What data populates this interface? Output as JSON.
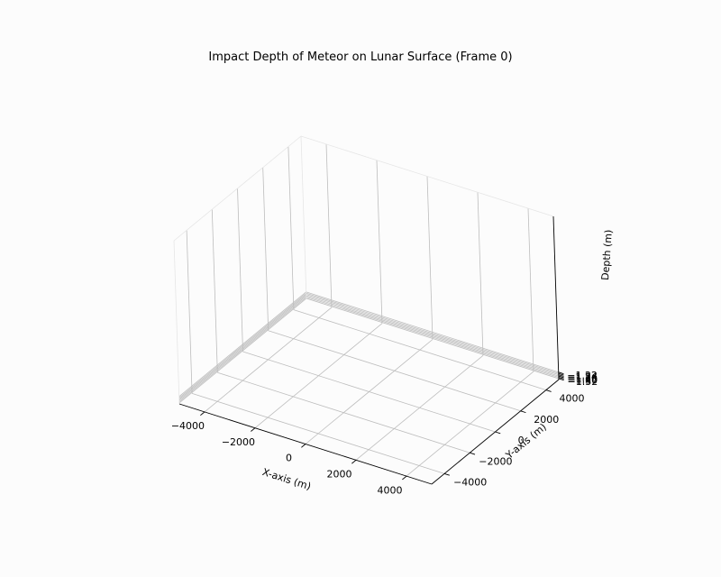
{
  "chart_data": {
    "type": "surface3d",
    "title": "Impact Depth of Meteor on Lunar Surface (Frame 0)",
    "xlabel": "X-axis (m)",
    "ylabel": "Y-axis (m)",
    "zlabel": "Depth (m)",
    "xlim": [
      -5000,
      5000
    ],
    "ylim": [
      -5000,
      5000
    ],
    "zlim": [
      -1.335,
      1.215
    ],
    "x_ticks": [
      -4000,
      -2000,
      0,
      2000,
      4000
    ],
    "y_ticks": [
      -4000,
      -2000,
      0,
      2000,
      4000
    ],
    "z_ticks": [
      -1.32,
      -1.3,
      -1.28,
      -1.26,
      -1.24,
      -1.22
    ],
    "x_tick_labels": [
      "−4000",
      "−2000",
      "0",
      "2000",
      "4000"
    ],
    "y_tick_labels": [
      "−4000",
      "−2000",
      "0",
      "2000",
      "4000"
    ],
    "z_tick_labels": [
      "−1.32",
      "−1.30",
      "−1.28",
      "−1.26",
      "−1.24",
      "−1.22"
    ],
    "grid": true,
    "surface": "none visible"
  },
  "colors": {
    "background": "#fcfcfc",
    "pane": "#fcfcfc",
    "grid": "#bdbdbd",
    "axis": "#000000"
  }
}
